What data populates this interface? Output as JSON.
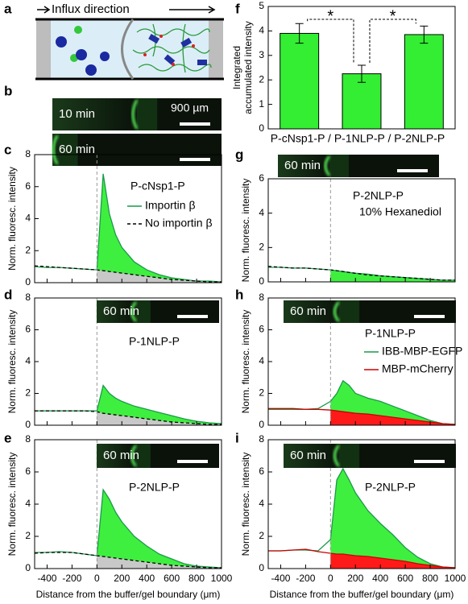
{
  "panel_a": {
    "label": "a",
    "text": "Influx direction"
  },
  "panel_b": {
    "label": "b",
    "images": [
      "10 min",
      "60 min"
    ],
    "scale": "900 µm"
  },
  "chart_data": [
    {
      "type": "line",
      "panel": "c",
      "annotations": [
        "P-cNsp1-P"
      ],
      "ylabel": "Norm. fluoresc. intensity",
      "x": [
        -500,
        -400,
        -300,
        -200,
        -100,
        0,
        50,
        100,
        150,
        200,
        300,
        400,
        500,
        600,
        700,
        800,
        900,
        1000
      ],
      "series": [
        {
          "name": "Importin β",
          "color": "#1a9a4a",
          "fill": "#3fef3f",
          "values": [
            1.0,
            0.95,
            0.95,
            0.9,
            0.85,
            0.8,
            6.8,
            4.3,
            3.0,
            2.2,
            1.3,
            0.8,
            0.5,
            0.3,
            0.2,
            0.1,
            0.1,
            0.05
          ]
        },
        {
          "name": "No importin β",
          "color": "#000000",
          "dash": true,
          "fill": "#c8c8c8",
          "values": [
            1.05,
            1.0,
            0.95,
            0.9,
            0.85,
            0.8,
            0.75,
            0.7,
            0.65,
            0.6,
            0.5,
            0.4,
            0.3,
            0.2,
            0.15,
            0.1,
            0.05,
            0.05
          ]
        }
      ],
      "xlim": [
        -500,
        1000
      ],
      "ylim": [
        0,
        8
      ],
      "xticks": [
        -400,
        -200,
        0,
        200,
        400,
        600,
        800,
        1000
      ],
      "yticks": [
        0,
        2,
        4,
        6,
        8
      ],
      "show_xtick_labels": false,
      "boundary_x": 0
    },
    {
      "type": "line",
      "panel": "d",
      "annotations": [
        "P-1NLP-P"
      ],
      "inset_label": "60 min",
      "ylabel": "Norm. fluoresc. intensity",
      "x": [
        -500,
        -400,
        -300,
        -200,
        -100,
        0,
        50,
        100,
        150,
        200,
        300,
        400,
        500,
        600,
        700,
        800,
        900,
        1000
      ],
      "series": [
        {
          "color": "#1a9a4a",
          "fill": "#3fef3f",
          "values": [
            0.9,
            0.9,
            0.9,
            0.9,
            0.9,
            0.9,
            2.5,
            2.0,
            1.7,
            1.5,
            1.2,
            1.0,
            0.8,
            0.6,
            0.4,
            0.25,
            0.15,
            0.1
          ]
        },
        {
          "color": "#000000",
          "dash": true,
          "fill": "#c8c8c8",
          "values": [
            0.9,
            0.9,
            0.9,
            0.9,
            0.9,
            0.85,
            0.75,
            0.7,
            0.65,
            0.6,
            0.5,
            0.4,
            0.3,
            0.2,
            0.15,
            0.1,
            0.05,
            0.05
          ]
        }
      ],
      "xlim": [
        -500,
        1000
      ],
      "ylim": [
        0,
        8
      ],
      "xticks": [
        -400,
        -200,
        0,
        200,
        400,
        600,
        800,
        1000
      ],
      "yticks": [
        0,
        2,
        4,
        6,
        8
      ],
      "show_xtick_labels": false,
      "boundary_x": 0
    },
    {
      "type": "line",
      "panel": "e",
      "annotations": [
        "P-2NLP-P"
      ],
      "inset_label": "60 min",
      "ylabel": "Norm. fluoresc. intensity",
      "xlabel": "Distance from the buffer/gel boundary (μm)",
      "x": [
        -500,
        -400,
        -300,
        -200,
        -100,
        0,
        50,
        100,
        150,
        200,
        300,
        400,
        500,
        600,
        700,
        800,
        900,
        1000
      ],
      "series": [
        {
          "color": "#1a9a4a",
          "fill": "#3fef3f",
          "values": [
            1.0,
            1.0,
            1.05,
            1.0,
            0.9,
            0.8,
            4.9,
            4.3,
            3.5,
            2.9,
            2.0,
            1.4,
            0.9,
            0.6,
            0.3,
            0.15,
            0.1,
            0.05
          ]
        },
        {
          "color": "#000000",
          "dash": true,
          "fill": "#c8c8c8",
          "values": [
            0.95,
            1.0,
            1.0,
            1.0,
            0.9,
            0.8,
            0.75,
            0.7,
            0.65,
            0.6,
            0.5,
            0.4,
            0.3,
            0.2,
            0.15,
            0.1,
            0.05,
            0.05
          ]
        }
      ],
      "xlim": [
        -500,
        1000
      ],
      "ylim": [
        0,
        8
      ],
      "xticks": [
        -400,
        -200,
        0,
        200,
        400,
        600,
        800,
        1000
      ],
      "yticks": [
        0,
        2,
        4,
        6,
        8
      ],
      "show_xtick_labels": true,
      "boundary_x": 0
    },
    {
      "type": "bar",
      "panel": "f",
      "annotations": [
        "*",
        "*"
      ],
      "ylabel_lines": [
        "Integrated",
        "accumulated intensity"
      ],
      "xlabel": "P-cNsp1-P / P-1NLP-P / P-2NLP-P",
      "categories": [
        null,
        null,
        null
      ],
      "values": [
        3.9,
        2.25,
        3.85
      ],
      "errors": [
        0.4,
        0.35,
        0.35
      ],
      "color": "#33ee33",
      "ylim": [
        0,
        5
      ],
      "yticks": [
        0,
        1,
        2,
        3,
        4,
        5
      ]
    },
    {
      "type": "line",
      "panel": "g",
      "annotations": [
        "P-2NLP-P",
        "10% Hexanediol"
      ],
      "inset_label": "60 min",
      "ylabel": "Norm. fluoresc. intensity",
      "x": [
        -500,
        -400,
        -300,
        -200,
        -100,
        0,
        50,
        100,
        150,
        200,
        300,
        400,
        500,
        600,
        700,
        800,
        900,
        1000
      ],
      "series": [
        {
          "color": "#1a9a4a",
          "fill": "#3fef3f",
          "values": [
            0.85,
            0.85,
            0.8,
            0.8,
            0.75,
            0.7,
            0.65,
            0.6,
            0.55,
            0.5,
            0.45,
            0.35,
            0.3,
            0.25,
            0.2,
            0.15,
            0.1,
            0.1
          ]
        },
        {
          "color": "#000000",
          "dash": true,
          "values": [
            0.9,
            0.85,
            0.8,
            0.8,
            0.75,
            0.7,
            0.65,
            0.6,
            0.55,
            0.5,
            0.4,
            0.35,
            0.3,
            0.25,
            0.2,
            0.15,
            0.1,
            0.1
          ]
        }
      ],
      "xlim": [
        -500,
        1000
      ],
      "ylim": [
        0,
        6
      ],
      "xticks": [
        -400,
        -200,
        0,
        200,
        400,
        600,
        800,
        1000
      ],
      "yticks": [
        0,
        2,
        4,
        6
      ],
      "show_xtick_labels": false,
      "boundary_x": 0
    },
    {
      "type": "line",
      "panel": "h",
      "annotations": [
        "P-1NLP-P"
      ],
      "inset_label": "60 min",
      "ylabel": "Norm. fluoresc. intensity",
      "x": [
        -500,
        -400,
        -300,
        -200,
        -100,
        0,
        50,
        100,
        150,
        200,
        300,
        400,
        500,
        600,
        700,
        800,
        900,
        1000
      ],
      "series": [
        {
          "name": "IBB-MBP-EGFP",
          "color": "#1a9a4a",
          "fill": "#3fef3f",
          "values": [
            1.0,
            1.0,
            1.0,
            1.0,
            1.05,
            1.5,
            2.0,
            2.8,
            2.5,
            2.0,
            1.7,
            1.5,
            1.2,
            0.9,
            0.6,
            0.3,
            0.1,
            0.05
          ]
        },
        {
          "name": "MBP-mCherry",
          "color": "#cc0000",
          "fill": "#ff1a1a",
          "values": [
            1.05,
            1.05,
            1.05,
            1.0,
            1.0,
            0.95,
            0.9,
            0.85,
            0.8,
            0.75,
            0.7,
            0.6,
            0.5,
            0.4,
            0.3,
            0.2,
            0.1,
            0.05
          ]
        }
      ],
      "xlim": [
        -500,
        1000
      ],
      "ylim": [
        0,
        8
      ],
      "xticks": [
        -400,
        -200,
        0,
        200,
        400,
        600,
        800,
        1000
      ],
      "yticks": [
        0,
        2,
        4,
        6,
        8
      ],
      "show_xtick_labels": false,
      "boundary_x": 0
    },
    {
      "type": "line",
      "panel": "i",
      "annotations": [
        "P-2NLP-P"
      ],
      "inset_label": "60 min",
      "ylabel": "Norm. fluoresc. intensity",
      "xlabel": "Distance from the buffer/gel boundary (μm)",
      "x": [
        -500,
        -400,
        -300,
        -200,
        -100,
        0,
        50,
        100,
        150,
        200,
        300,
        400,
        500,
        600,
        700,
        800,
        900,
        1000
      ],
      "series": [
        {
          "color": "#1a9a4a",
          "fill": "#3fef3f",
          "values": [
            1.1,
            1.1,
            1.15,
            1.15,
            1.1,
            1.8,
            5.5,
            6.2,
            5.5,
            4.7,
            3.6,
            2.8,
            2.1,
            1.3,
            0.7,
            0.3,
            0.1,
            0.05
          ]
        },
        {
          "color": "#cc0000",
          "fill": "#ff1a1a",
          "values": [
            1.1,
            1.1,
            1.15,
            1.2,
            1.05,
            0.95,
            0.9,
            0.9,
            0.85,
            0.8,
            0.75,
            0.65,
            0.55,
            0.45,
            0.3,
            0.2,
            0.1,
            0.05
          ]
        }
      ],
      "xlim": [
        -500,
        1000
      ],
      "ylim": [
        0,
        8
      ],
      "xticks": [
        -400,
        -200,
        0,
        200,
        400,
        600,
        800,
        1000
      ],
      "yticks": [
        0,
        2,
        4,
        6,
        8
      ],
      "show_xtick_labels": true,
      "boundary_x": 0
    }
  ]
}
